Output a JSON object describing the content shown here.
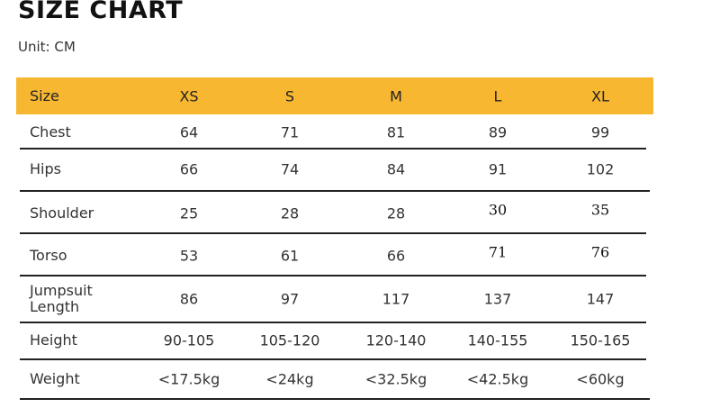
{
  "title": "SIZE CHART",
  "unit": "Unit: CM",
  "header_color": "#f7b731",
  "table": {
    "header": [
      "Size",
      "XS",
      "S",
      "M",
      "L",
      "XL"
    ],
    "rows": [
      {
        "label": "Chest",
        "values": [
          "64",
          "71",
          "81",
          "89",
          "99"
        ]
      },
      {
        "label": "Hips",
        "values": [
          "66",
          "74",
          "84",
          "91",
          "102"
        ]
      },
      {
        "label": "Shoulder",
        "values": [
          "25",
          "28",
          "28",
          "30",
          "35"
        ]
      },
      {
        "label": "Torso",
        "values": [
          "53",
          "61",
          "66",
          "71",
          "76"
        ]
      },
      {
        "label": "Jumpsuit Length",
        "values": [
          "86",
          "97",
          "117",
          "137",
          "147"
        ]
      },
      {
        "label": "Height",
        "values": [
          "90-105",
          "105-120",
          "120-140",
          "140-155",
          "150-165"
        ]
      },
      {
        "label": "Weight",
        "values": [
          "<17.5kg",
          "<24kg",
          "<32.5kg",
          "<42.5kg",
          "<60kg"
        ]
      }
    ]
  }
}
